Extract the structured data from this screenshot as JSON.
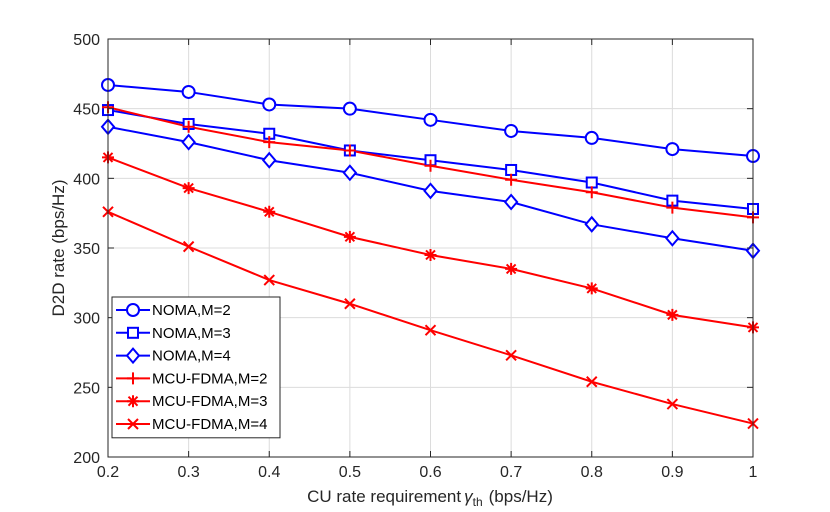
{
  "chart_data": {
    "type": "line",
    "title": "",
    "xlabel": "CU rate requirement",
    "xlabel_symbol": "γ",
    "xlabel_subscript": "th",
    "xlabel_unit": "(bps/Hz)",
    "ylabel": "D2D rate (bps/Hz)",
    "xlim": [
      0.2,
      1
    ],
    "ylim": [
      200,
      500
    ],
    "x": [
      0.2,
      0.3,
      0.4,
      0.5,
      0.6,
      0.7,
      0.8,
      0.9,
      1
    ],
    "xticks": [
      "0.2",
      "0.3",
      "0.4",
      "0.5",
      "0.6",
      "0.7",
      "0.8",
      "0.9",
      "1"
    ],
    "yticks": [
      "200",
      "250",
      "300",
      "350",
      "400",
      "450",
      "500"
    ],
    "legend_position": "bottom-left",
    "series": [
      {
        "name": "NOMA,M=2",
        "color": "#0000ff",
        "marker": "circle",
        "values": [
          467,
          462,
          453,
          450,
          442,
          434,
          429,
          421,
          416
        ]
      },
      {
        "name": "NOMA,M=3",
        "color": "#0000ff",
        "marker": "square",
        "values": [
          449,
          439,
          432,
          420,
          413,
          406,
          397,
          384,
          378
        ]
      },
      {
        "name": "NOMA,M=4",
        "color": "#0000ff",
        "marker": "diamond",
        "values": [
          437,
          426,
          413,
          404,
          391,
          383,
          367,
          357,
          348
        ]
      },
      {
        "name": "MCU-FDMA,M=2",
        "color": "#ff0000",
        "marker": "plus",
        "values": [
          451,
          437,
          426,
          420,
          409,
          399,
          390,
          379,
          372
        ]
      },
      {
        "name": "MCU-FDMA,M=3",
        "color": "#ff0000",
        "marker": "asterisk",
        "values": [
          415,
          393,
          376,
          358,
          345,
          335,
          321,
          302,
          293
        ]
      },
      {
        "name": "MCU-FDMA,M=4",
        "color": "#ff0000",
        "marker": "x",
        "values": [
          376,
          351,
          327,
          310,
          291,
          273,
          254,
          238,
          224
        ]
      }
    ]
  }
}
